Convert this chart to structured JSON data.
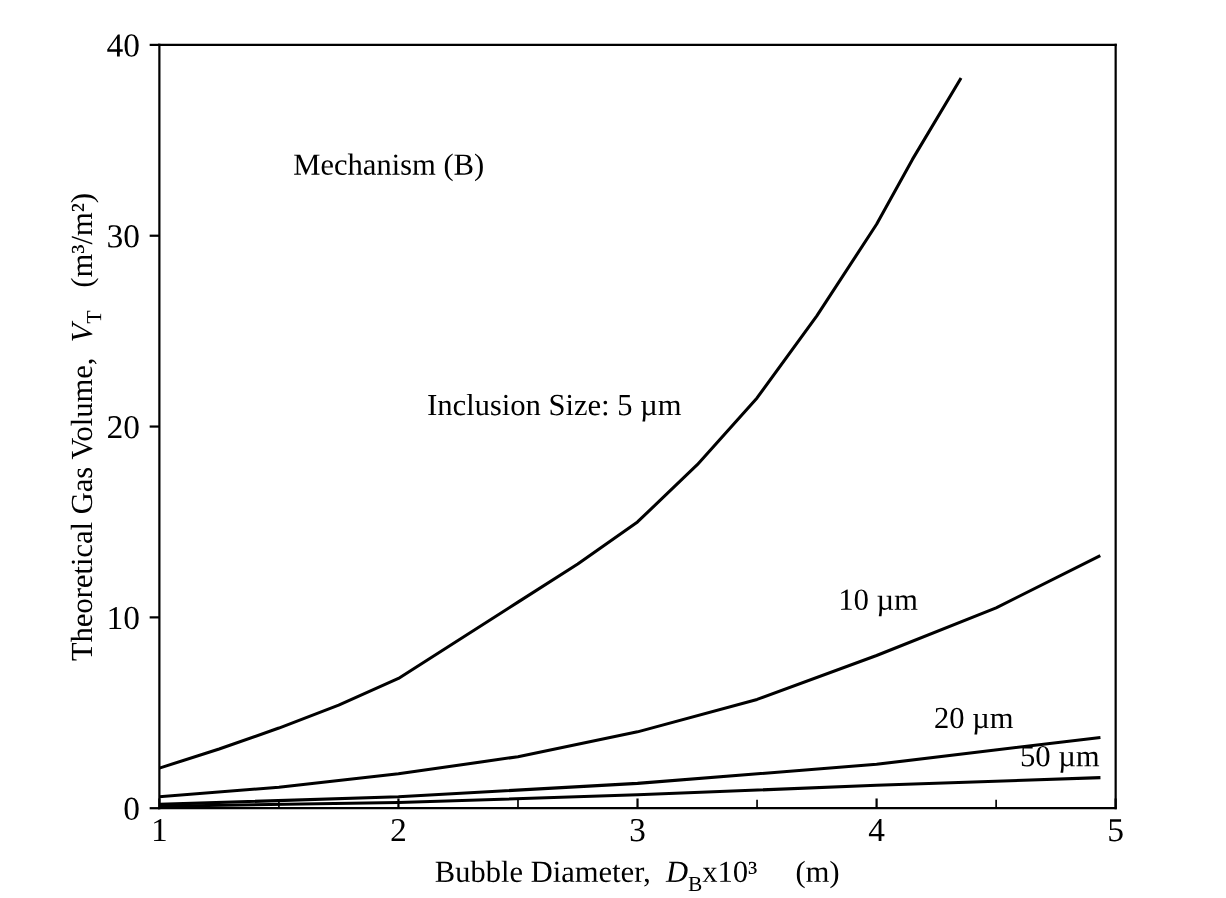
{
  "chart_data": {
    "type": "line",
    "xlabel": "Bubble Diameter,  D$_{B}$x10³     (m)",
    "ylabel": "Theoretical Gas Volume,  V$_{T}$   (m³/m²)",
    "xlim": [
      1,
      5
    ],
    "xticks": [
      1,
      2,
      3,
      4,
      5
    ],
    "ylim": [
      0,
      40
    ],
    "yticks": [
      0,
      10,
      20,
      30,
      40
    ],
    "grid": false,
    "marker": "none",
    "line_style": "solid",
    "series": [
      {
        "name": "Inclusion Size: 5 µm",
        "color": "#000000",
        "x": [
          1,
          1.25,
          1.5,
          1.75,
          2,
          2.5,
          2.75,
          3,
          3.25,
          3.5,
          3.75,
          4,
          4.15,
          4.35
        ],
        "values": [
          2.1,
          3.1,
          4.2,
          5.4,
          6.8,
          10.8,
          12.8,
          15.0,
          18.0,
          21.5,
          25.8,
          30.6,
          34.0,
          38.2
        ]
      },
      {
        "name": "10 µm",
        "color": "#000000",
        "x": [
          1,
          1.5,
          2,
          2.5,
          3,
          3.5,
          4,
          4.5,
          4.93
        ],
        "values": [
          0.6,
          1.1,
          1.8,
          2.7,
          4.0,
          5.7,
          8.0,
          10.5,
          13.2
        ]
      },
      {
        "name": "20 µm",
        "color": "#000000",
        "x": [
          1,
          2,
          3,
          4,
          4.93
        ],
        "values": [
          0.2,
          0.6,
          1.3,
          2.3,
          3.7
        ]
      },
      {
        "name": "50 µm",
        "color": "#000000",
        "x": [
          1,
          2,
          3,
          4,
          4.93
        ],
        "values": [
          0.1,
          0.3,
          0.7,
          1.2,
          1.6
        ]
      }
    ],
    "annotations": [
      "Mechanism (B)"
    ]
  }
}
